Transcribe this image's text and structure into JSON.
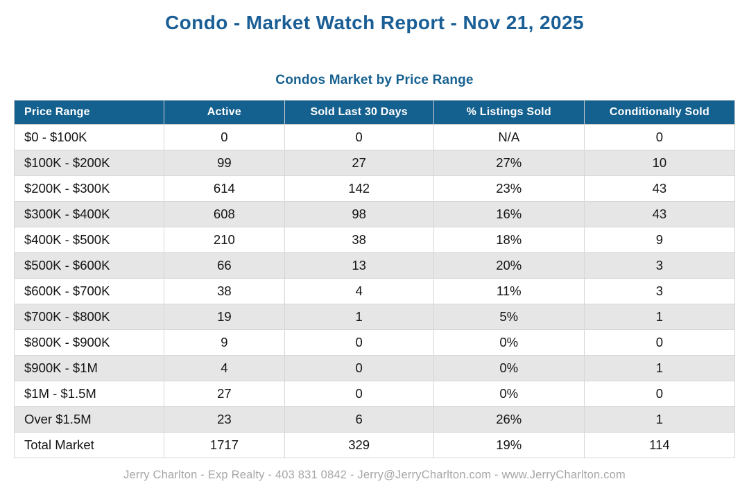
{
  "page": {
    "title": "Condo - Market Watch Report - Nov 21, 2025",
    "subtitle": "Condos Market by Price Range",
    "footer": "Jerry Charlton - Exp Realty - 403 831 0842 - Jerry@JerryCharlton.com - www.JerryCharlton.com"
  },
  "colors": {
    "title_blue": "#1a5e96",
    "header_bg": "#14608f",
    "header_text": "#ffffff",
    "row_alt_gray": "#e6e6e6",
    "border_gray": "#d6d6d6",
    "footer_gray": "#a6a6a6"
  },
  "table": {
    "columns": [
      "Price Range",
      "Active",
      "Sold Last 30 Days",
      "% Listings Sold",
      "Conditionally Sold"
    ],
    "rows": [
      [
        "$0 - $100K",
        "0",
        "0",
        "N/A",
        "0"
      ],
      [
        "$100K - $200K",
        "99",
        "27",
        "27%",
        "10"
      ],
      [
        "$200K - $300K",
        "614",
        "142",
        "23%",
        "43"
      ],
      [
        "$300K - $400K",
        "608",
        "98",
        "16%",
        "43"
      ],
      [
        "$400K - $500K",
        "210",
        "38",
        "18%",
        "9"
      ],
      [
        "$500K - $600K",
        "66",
        "13",
        "20%",
        "3"
      ],
      [
        "$600K - $700K",
        "38",
        "4",
        "11%",
        "3"
      ],
      [
        "$700K - $800K",
        "19",
        "1",
        "5%",
        "1"
      ],
      [
        "$800K - $900K",
        "9",
        "0",
        "0%",
        "0"
      ],
      [
        "$900K - $1M",
        "4",
        "0",
        "0%",
        "1"
      ],
      [
        "$1M - $1.5M",
        "27",
        "0",
        "0%",
        "0"
      ],
      [
        "Over $1.5M",
        "23",
        "6",
        "26%",
        "1"
      ],
      [
        "Total Market",
        "1717",
        "329",
        "19%",
        "114"
      ]
    ]
  },
  "chart_data": {
    "type": "table",
    "title": "Condos Market by Price Range",
    "columns": [
      "Price Range",
      "Active",
      "Sold Last 30 Days",
      "% Listings Sold",
      "Conditionally Sold"
    ],
    "categories": [
      "$0 - $100K",
      "$100K - $200K",
      "$200K - $300K",
      "$300K - $400K",
      "$400K - $500K",
      "$500K - $600K",
      "$600K - $700K",
      "$700K - $800K",
      "$800K - $900K",
      "$900K - $1M",
      "$1M - $1.5M",
      "Over $1.5M",
      "Total Market"
    ],
    "series": [
      {
        "name": "Active",
        "values": [
          0,
          99,
          614,
          608,
          210,
          66,
          38,
          19,
          9,
          4,
          27,
          23,
          1717
        ]
      },
      {
        "name": "Sold Last 30 Days",
        "values": [
          0,
          27,
          142,
          98,
          38,
          13,
          4,
          1,
          0,
          0,
          0,
          6,
          329
        ]
      },
      {
        "name": "% Listings Sold",
        "values": [
          "N/A",
          "27%",
          "23%",
          "16%",
          "18%",
          "20%",
          "11%",
          "5%",
          "0%",
          "0%",
          "0%",
          "26%",
          "19%"
        ]
      },
      {
        "name": "Conditionally Sold",
        "values": [
          0,
          10,
          43,
          43,
          9,
          3,
          3,
          1,
          0,
          1,
          0,
          1,
          114
        ]
      }
    ]
  }
}
